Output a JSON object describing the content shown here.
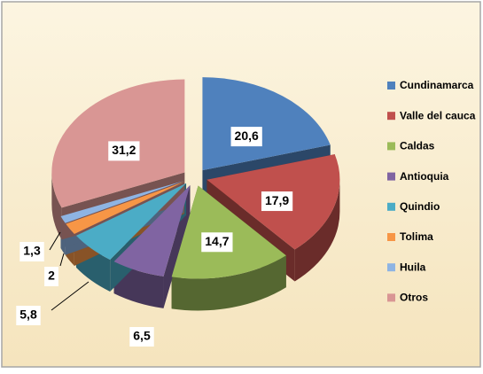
{
  "chart_data": {
    "type": "pie",
    "categories": [
      "Cundinamarca",
      "Valle del cauca",
      "Caldas",
      "Antioquia",
      "Quindio",
      "Tolima",
      "Huila",
      "Otros"
    ],
    "values": [
      20.6,
      17.9,
      14.7,
      6.5,
      5.8,
      2,
      1.3,
      31.2
    ],
    "value_labels": [
      "20,6",
      "17,9",
      "14,7",
      "6,5",
      "5,8",
      "2",
      "1,3",
      "31,2"
    ],
    "colors": [
      "#4f81bd",
      "#c0504d",
      "#9bbb59",
      "#8064a2",
      "#4bacc6",
      "#f79646",
      "#8eb4e3",
      "#d99694"
    ],
    "legend": "right"
  }
}
